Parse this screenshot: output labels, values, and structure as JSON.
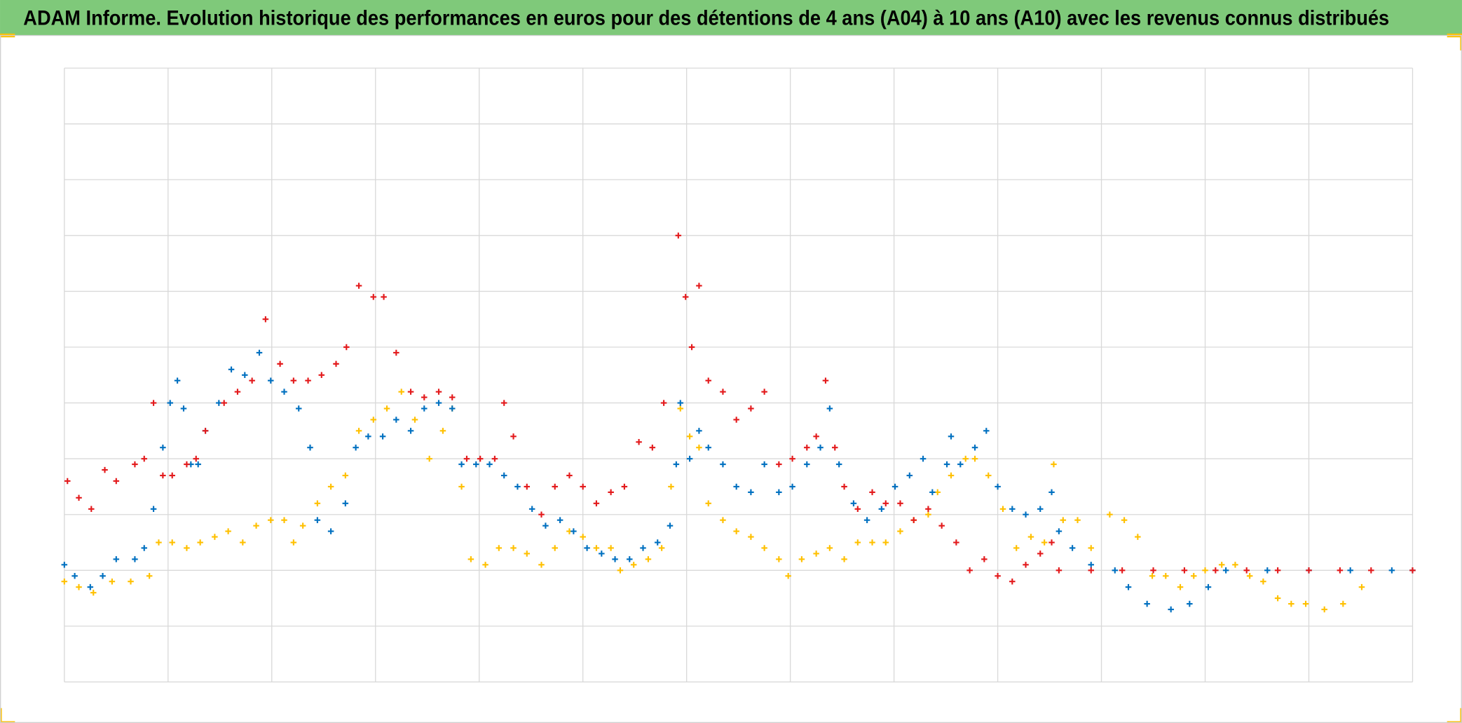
{
  "chart_data": {
    "type": "scatter",
    "title": "ADAM Informe. Evolution historique des performances en euros pour des détentions de 4 ans (A04) à 10 ans (A10) avec les revenus connus distribués",
    "xlim": [
      0,
      130
    ],
    "xticks": [
      0,
      10,
      20,
      30,
      40,
      50,
      60,
      70,
      80,
      90,
      100,
      110,
      120,
      130
    ],
    "ylim": [
      -10,
      100
    ],
    "yticks": [
      -10,
      0,
      10,
      20,
      30,
      40,
      50,
      60,
      70,
      80,
      90,
      100
    ],
    "grid": true,
    "tick_labels": false,
    "marker": "+",
    "series": [
      {
        "color": "#ffc000",
        "x": [
          0,
          1.4,
          2.8,
          4.6,
          6.4,
          8.2,
          9.1,
          10.4,
          11.8,
          13.1,
          14.5,
          15.8,
          17.2,
          18.5,
          19.9,
          21.2,
          22.1,
          23,
          24.4,
          25.7,
          27.1,
          28.4,
          29.8,
          31.1,
          32.5,
          33.8,
          35.2,
          36.5,
          37.4,
          38.3,
          39.2,
          40.6,
          41.9,
          43.3,
          44.6,
          46,
          47.3,
          48.7,
          50,
          51.3,
          52.7,
          53.6,
          54.9,
          56.3,
          57.6,
          58.5,
          59.4,
          60.3,
          61.2,
          62.1,
          63.5,
          64.8,
          66.2,
          67.5,
          68.9,
          69.8,
          71.1,
          72.5,
          73.8,
          75.2,
          76.5,
          77.9,
          79.2,
          80.6,
          81.9,
          83.3,
          84.2,
          85.5,
          86.9,
          87.8,
          89.1,
          90.5,
          91.8,
          93.2,
          94.5,
          95.4,
          96.3,
          97.7,
          99,
          100.8,
          102.2,
          103.5,
          104.9,
          106.2,
          107.6,
          108.9,
          110,
          111.6,
          112.9,
          114.3,
          115.6,
          117,
          118.3,
          119.7,
          121.5,
          123.3,
          125.1
        ],
        "values": [
          8,
          7,
          6,
          8,
          8,
          9,
          15,
          15,
          14,
          15,
          16,
          17,
          15,
          18,
          19,
          19,
          15,
          18,
          22,
          25,
          27,
          35,
          37,
          39,
          42,
          37,
          30,
          35,
          39,
          25,
          12,
          11,
          14,
          14,
          13,
          11,
          14,
          17,
          16,
          14,
          14,
          10,
          11,
          12,
          14,
          25,
          39,
          34,
          32,
          22,
          19,
          17,
          16,
          14,
          12,
          9,
          12,
          13,
          14,
          12,
          15,
          15,
          15,
          17,
          19,
          20,
          24,
          27,
          30,
          30,
          27,
          21,
          14,
          16,
          15,
          29,
          19,
          19,
          14,
          20,
          19,
          16,
          9,
          9,
          7,
          9,
          10,
          11,
          11,
          9,
          8,
          5,
          4,
          4,
          3,
          4,
          7
        ]
      },
      {
        "color": "#0070c0",
        "x": [
          0,
          1,
          2.5,
          3.7,
          5,
          6.8,
          7.7,
          8.6,
          9.5,
          10.2,
          10.9,
          11.5,
          12.2,
          12.9,
          13.6,
          14.9,
          16.1,
          17.4,
          18.8,
          19.9,
          21.2,
          22.6,
          23.7,
          24.4,
          25.7,
          27.1,
          28.1,
          29.3,
          30.7,
          32,
          33.4,
          34.7,
          36.1,
          37.4,
          38.3,
          39.7,
          41,
          42.4,
          43.7,
          45.1,
          46.4,
          47.8,
          49.1,
          50.4,
          51.8,
          53.1,
          54.5,
          55.8,
          57.2,
          58.4,
          59,
          59.4,
          60.3,
          61.2,
          62.1,
          63.5,
          64.8,
          66.2,
          67.5,
          68.9,
          70.2,
          71.6,
          72.9,
          73.8,
          74.7,
          76.1,
          77.4,
          78.8,
          80.1,
          81.5,
          82.8,
          83.7,
          85.1,
          85.5,
          86.4,
          87.8,
          88.9,
          90,
          91.4,
          92.7,
          94.1,
          95.2,
          95.9,
          97.2,
          99,
          101.3,
          102.6,
          104.4,
          106.7,
          108.5,
          110.3,
          112,
          116,
          120,
          124,
          128,
          130
        ],
        "values": [
          11,
          9,
          7,
          9,
          12,
          12,
          14,
          21,
          32,
          40,
          44,
          39,
          29,
          29,
          35,
          40,
          46,
          45,
          49,
          44,
          42,
          39,
          32,
          19,
          17,
          22,
          32,
          34,
          34,
          37,
          35,
          39,
          40,
          39,
          29,
          29,
          29,
          27,
          25,
          21,
          18,
          19,
          17,
          14,
          13,
          12,
          12,
          14,
          15,
          18,
          29,
          40,
          30,
          35,
          32,
          29,
          25,
          24,
          29,
          24,
          25,
          29,
          32,
          39,
          29,
          22,
          19,
          21,
          25,
          27,
          30,
          24,
          29,
          34,
          29,
          32,
          35,
          25,
          21,
          20,
          21,
          24,
          17,
          14,
          11,
          10,
          7,
          4,
          3,
          4,
          7,
          10,
          10,
          10,
          10,
          10,
          10
        ]
      },
      {
        "color": "#e31a1c",
        "x": [
          0.3,
          1.4,
          2.6,
          3.9,
          5,
          6.8,
          7.7,
          8.6,
          9.5,
          10.4,
          11.8,
          12.7,
          13.6,
          15.4,
          16.7,
          18.1,
          19.4,
          20.8,
          22.1,
          23.5,
          24.8,
          26.2,
          27.2,
          28.4,
          29.8,
          30.8,
          32,
          33.4,
          34.7,
          36.1,
          37.4,
          38.8,
          40.1,
          41.5,
          42.4,
          43.3,
          44.6,
          46,
          47.3,
          48.7,
          50,
          51.3,
          52.7,
          54,
          55.4,
          56.7,
          57.8,
          59.2,
          59.9,
          60.5,
          61.2,
          62.1,
          63.5,
          64.8,
          66.2,
          67.5,
          68.9,
          70.2,
          71.6,
          72.5,
          73.4,
          74.3,
          75.2,
          76.5,
          77.9,
          79.2,
          80.6,
          81.9,
          83.3,
          84.6,
          86,
          87.3,
          88.7,
          90,
          91.4,
          92.7,
          94.1,
          95.2,
          95.9,
          99,
          102,
          105,
          108,
          111,
          114,
          117,
          120,
          123,
          126,
          130
        ],
        "values": [
          26,
          23,
          21,
          28,
          26,
          29,
          30,
          40,
          27,
          27,
          29,
          30,
          35,
          40,
          42,
          44,
          55,
          47,
          44,
          44,
          45,
          47,
          50,
          61,
          59,
          59,
          49,
          42,
          41,
          42,
          41,
          30,
          30,
          30,
          40,
          34,
          25,
          20,
          25,
          27,
          25,
          22,
          24,
          25,
          33,
          32,
          40,
          70,
          59,
          50,
          61,
          44,
          42,
          37,
          39,
          42,
          29,
          30,
          32,
          34,
          44,
          32,
          25,
          21,
          24,
          22,
          22,
          19,
          21,
          18,
          15,
          10,
          12,
          9,
          8,
          11,
          13,
          15,
          10,
          10,
          10,
          10,
          10,
          10,
          10,
          10,
          10,
          10,
          10,
          10
        ]
      }
    ]
  }
}
